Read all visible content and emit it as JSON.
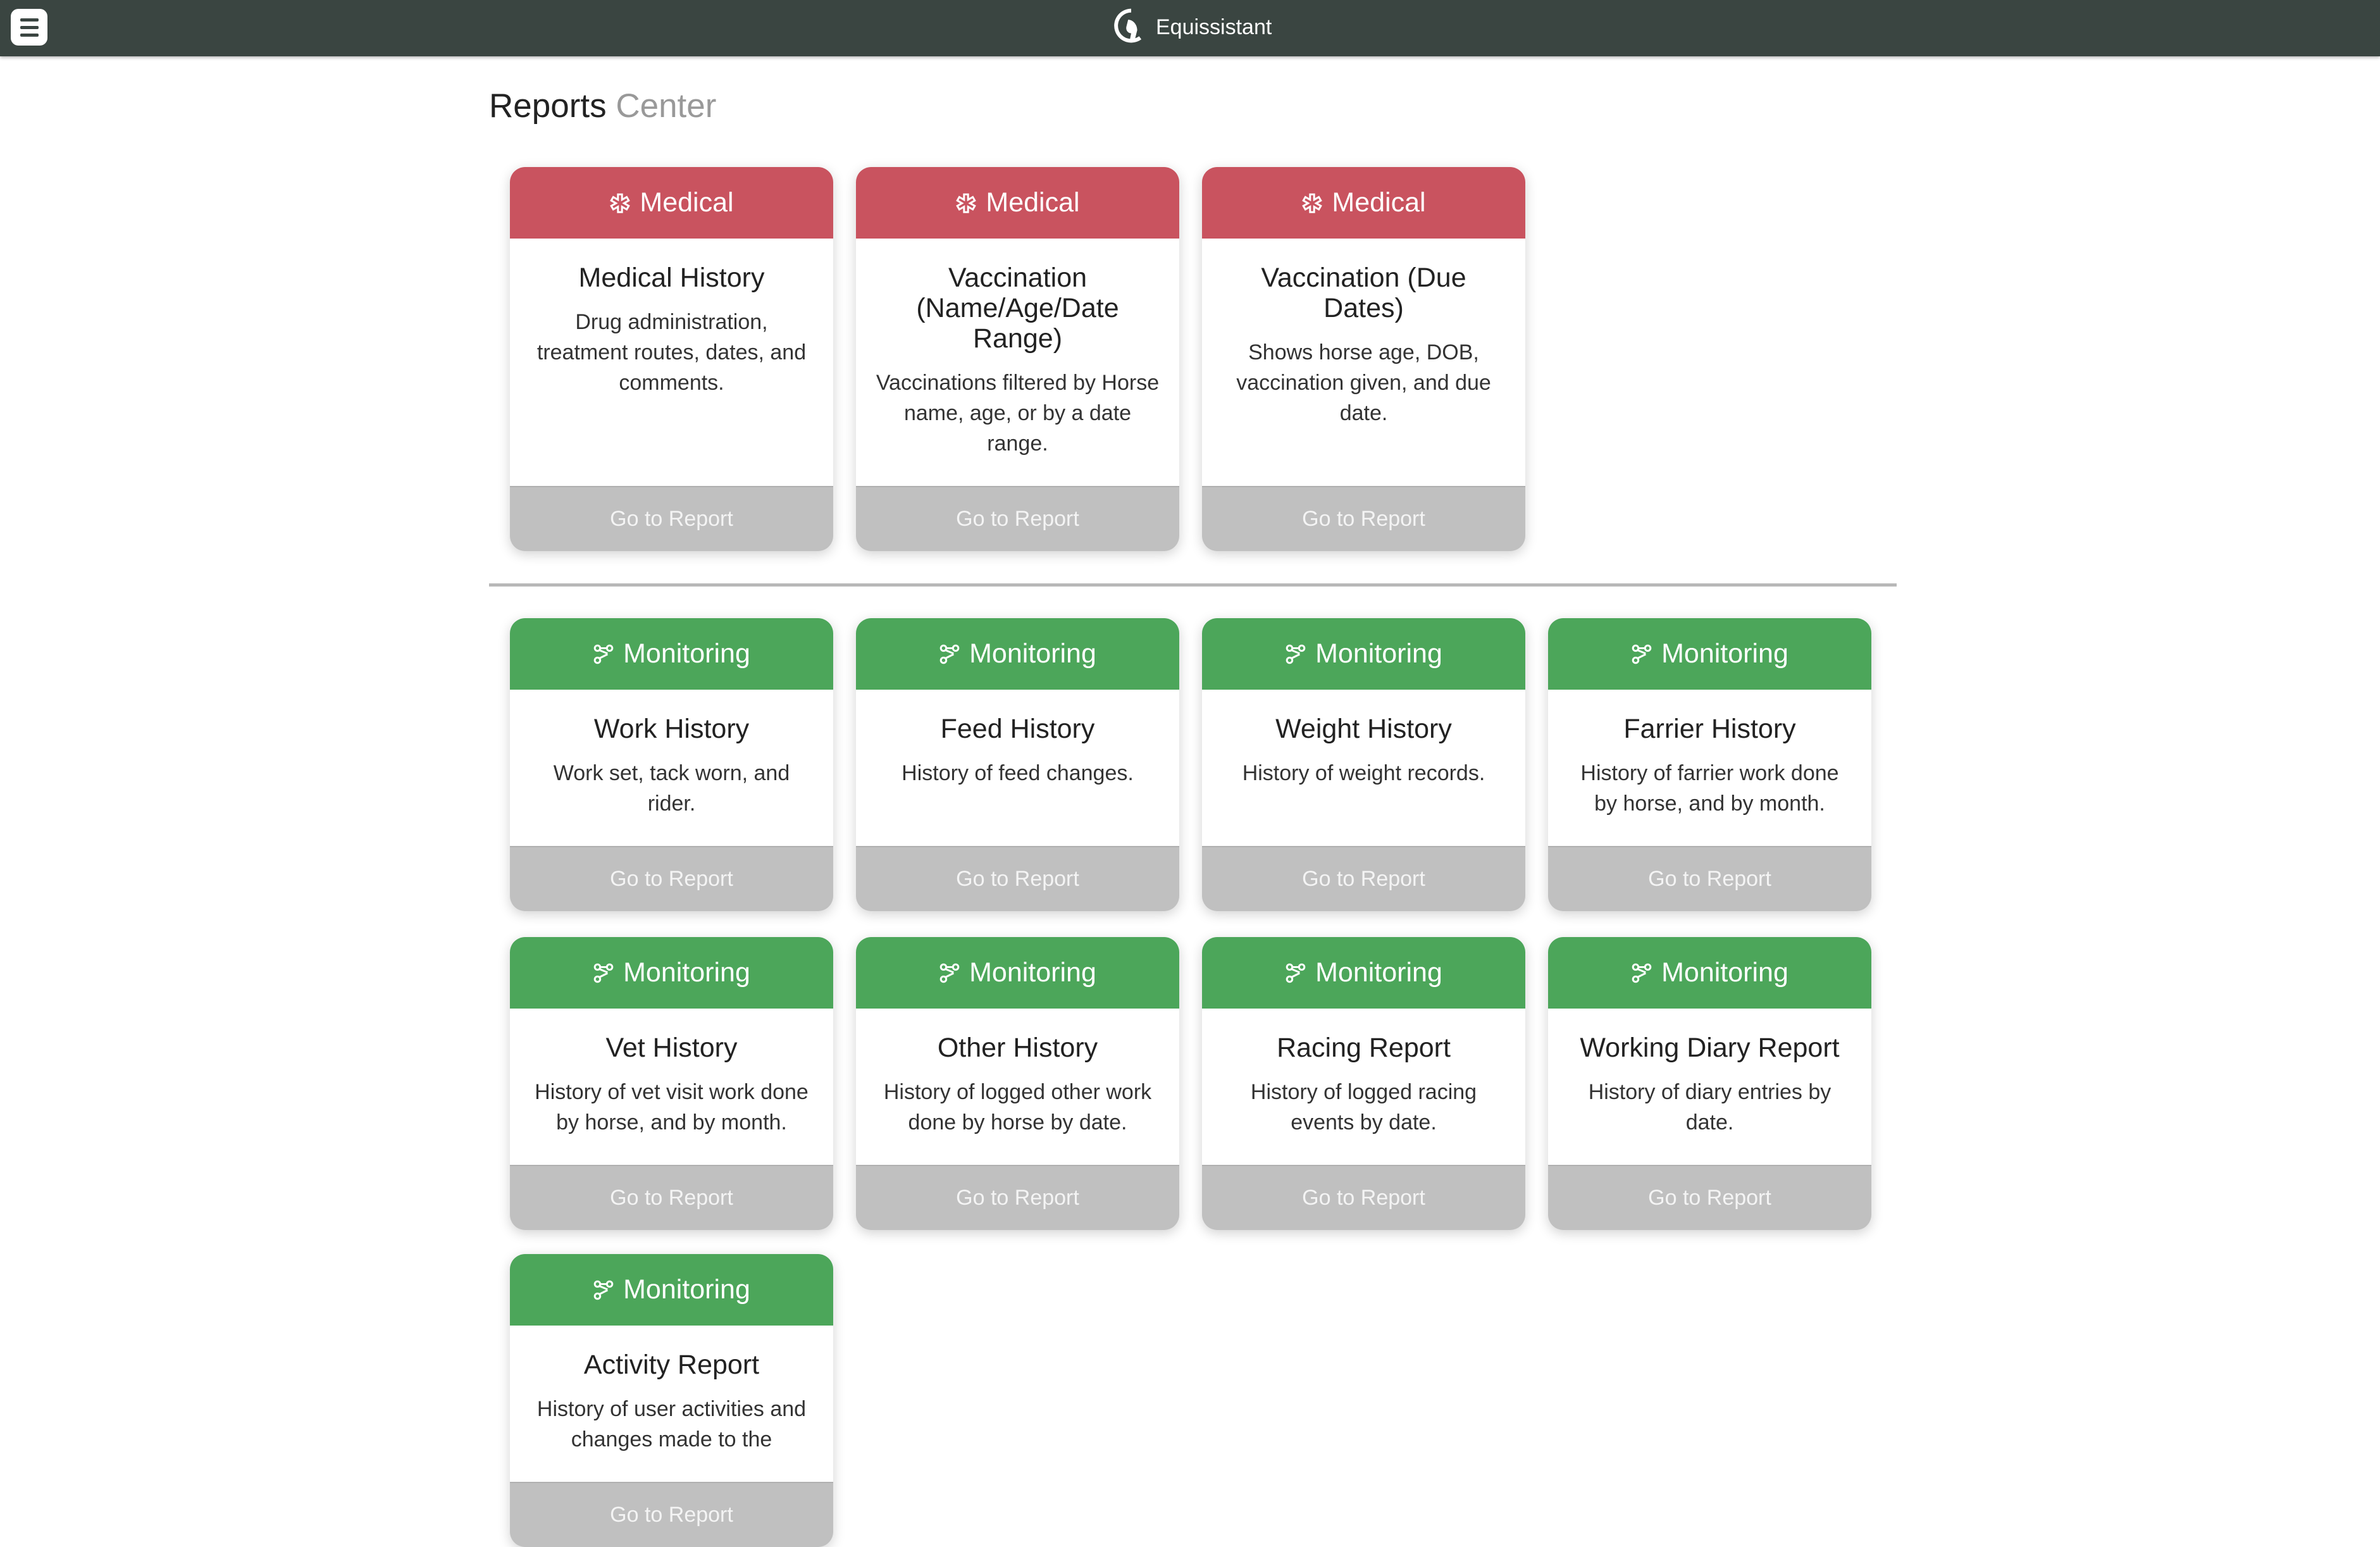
{
  "header": {
    "menu_icon": "hamburger-icon",
    "logo_icon": "horse-head-logo-icon",
    "app_name": "Equissistant"
  },
  "page": {
    "title_main": "Reports",
    "title_light": "Center"
  },
  "colors": {
    "topbar": "#3a4541",
    "medical": "#c9535f",
    "monitoring": "#4ca65a",
    "button": "#c0c0c0"
  },
  "medical_cards": [
    {
      "category": "Medical",
      "icon": "medical-asterisk-icon",
      "title": "Medical History",
      "description": "Drug administration, treatment routes, dates, and comments.",
      "button": "Go to Report"
    },
    {
      "category": "Medical",
      "icon": "medical-asterisk-icon",
      "title": "Vaccination (Name/Age/Date Range)",
      "description": "Vaccinations filtered by Horse name, age, or by a date range.",
      "button": "Go to Report"
    },
    {
      "category": "Medical",
      "icon": "medical-asterisk-icon",
      "title": "Vaccination (Due Dates)",
      "description": "Shows horse age, DOB, vaccination given, and due date.",
      "button": "Go to Report"
    }
  ],
  "monitoring_rows": [
    [
      {
        "category": "Monitoring",
        "icon": "nodes-icon",
        "title": "Work History",
        "description": "Work set, tack worn, and rider.",
        "button": "Go to Report"
      },
      {
        "category": "Monitoring",
        "icon": "nodes-icon",
        "title": "Feed History",
        "description": "History of feed changes.",
        "button": "Go to Report"
      },
      {
        "category": "Monitoring",
        "icon": "nodes-icon",
        "title": "Weight History",
        "description": "History of weight records.",
        "button": "Go to Report"
      },
      {
        "category": "Monitoring",
        "icon": "nodes-icon",
        "title": "Farrier History",
        "description": "History of farrier work done by horse, and by month.",
        "button": "Go to Report"
      }
    ],
    [
      {
        "category": "Monitoring",
        "icon": "nodes-icon",
        "title": "Vet History",
        "description": "History of vet visit work done by horse, and by month.",
        "button": "Go to Report"
      },
      {
        "category": "Monitoring",
        "icon": "nodes-icon",
        "title": "Other History",
        "description": "History of logged other work done by horse by date.",
        "button": "Go to Report"
      },
      {
        "category": "Monitoring",
        "icon": "nodes-icon",
        "title": "Racing Report",
        "description": "History of logged racing events by date.",
        "button": "Go to Report"
      },
      {
        "category": "Monitoring",
        "icon": "nodes-icon",
        "title": "Working Diary Report",
        "description": "History of diary entries by date.",
        "button": "Go to Report"
      }
    ],
    [
      {
        "category": "Monitoring",
        "icon": "nodes-icon",
        "title": "Activity Report",
        "description": "History of user activities and changes made to the",
        "button": "Go to Report"
      }
    ]
  ]
}
